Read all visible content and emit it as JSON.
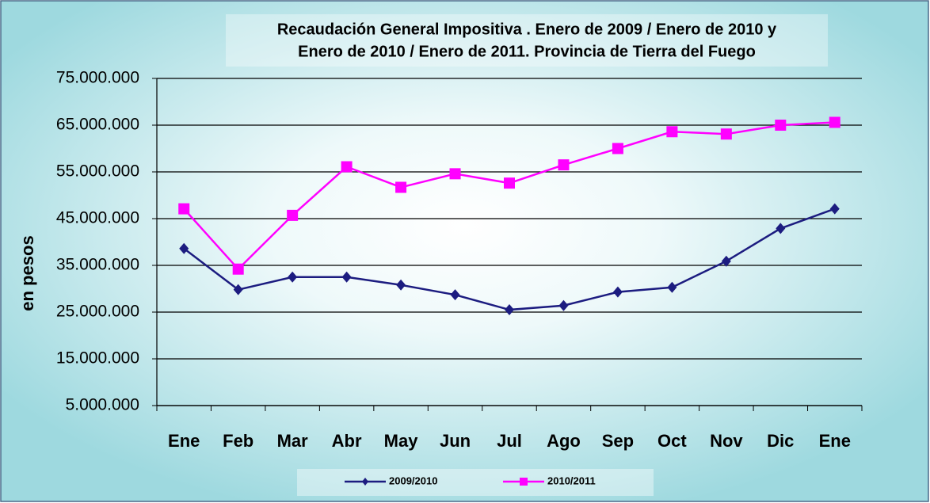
{
  "chart_data": {
    "type": "line",
    "title": [
      "Recaudación General Impositiva . Enero de 2009 / Enero de 2010  y",
      "Enero de 2010 / Enero de 2011. Provincia de Tierra del Fuego"
    ],
    "y_label": "en pesos",
    "categories": [
      "Ene",
      "Feb",
      "Mar",
      "Abr",
      "May",
      "Jun",
      "Jul",
      "Ago",
      "Sep",
      "Oct",
      "Nov",
      "Dic",
      "Ene"
    ],
    "series": [
      {
        "name": "2009/2010",
        "color": "#1c1c80",
        "marker": "diamond",
        "values": [
          38600000,
          29800000,
          32500000,
          32500000,
          30800000,
          28700000,
          25500000,
          26400000,
          29300000,
          30300000,
          35900000,
          42900000,
          47100000
        ]
      },
      {
        "name": "2010/2011",
        "color": "#ff00ff",
        "marker": "square",
        "values": [
          47100000,
          34200000,
          45700000,
          56100000,
          51700000,
          54600000,
          52600000,
          56500000,
          60000000,
          63600000,
          63100000,
          65000000,
          65600000
        ]
      }
    ],
    "ylim": [
      5000000,
      75000000
    ],
    "yticks": [
      {
        "value": 5000000,
        "label": "5.000.000"
      },
      {
        "value": 15000000,
        "label": "15.000.000"
      },
      {
        "value": 25000000,
        "label": "25.000.000"
      },
      {
        "value": 35000000,
        "label": "35.000.000"
      },
      {
        "value": 45000000,
        "label": "45.000.000"
      },
      {
        "value": 55000000,
        "label": "55.000.000"
      },
      {
        "value": 65000000,
        "label": "65.000.000"
      },
      {
        "value": 75000000,
        "label": "75.000.000"
      }
    ],
    "grid": true,
    "legend": "bottom"
  }
}
